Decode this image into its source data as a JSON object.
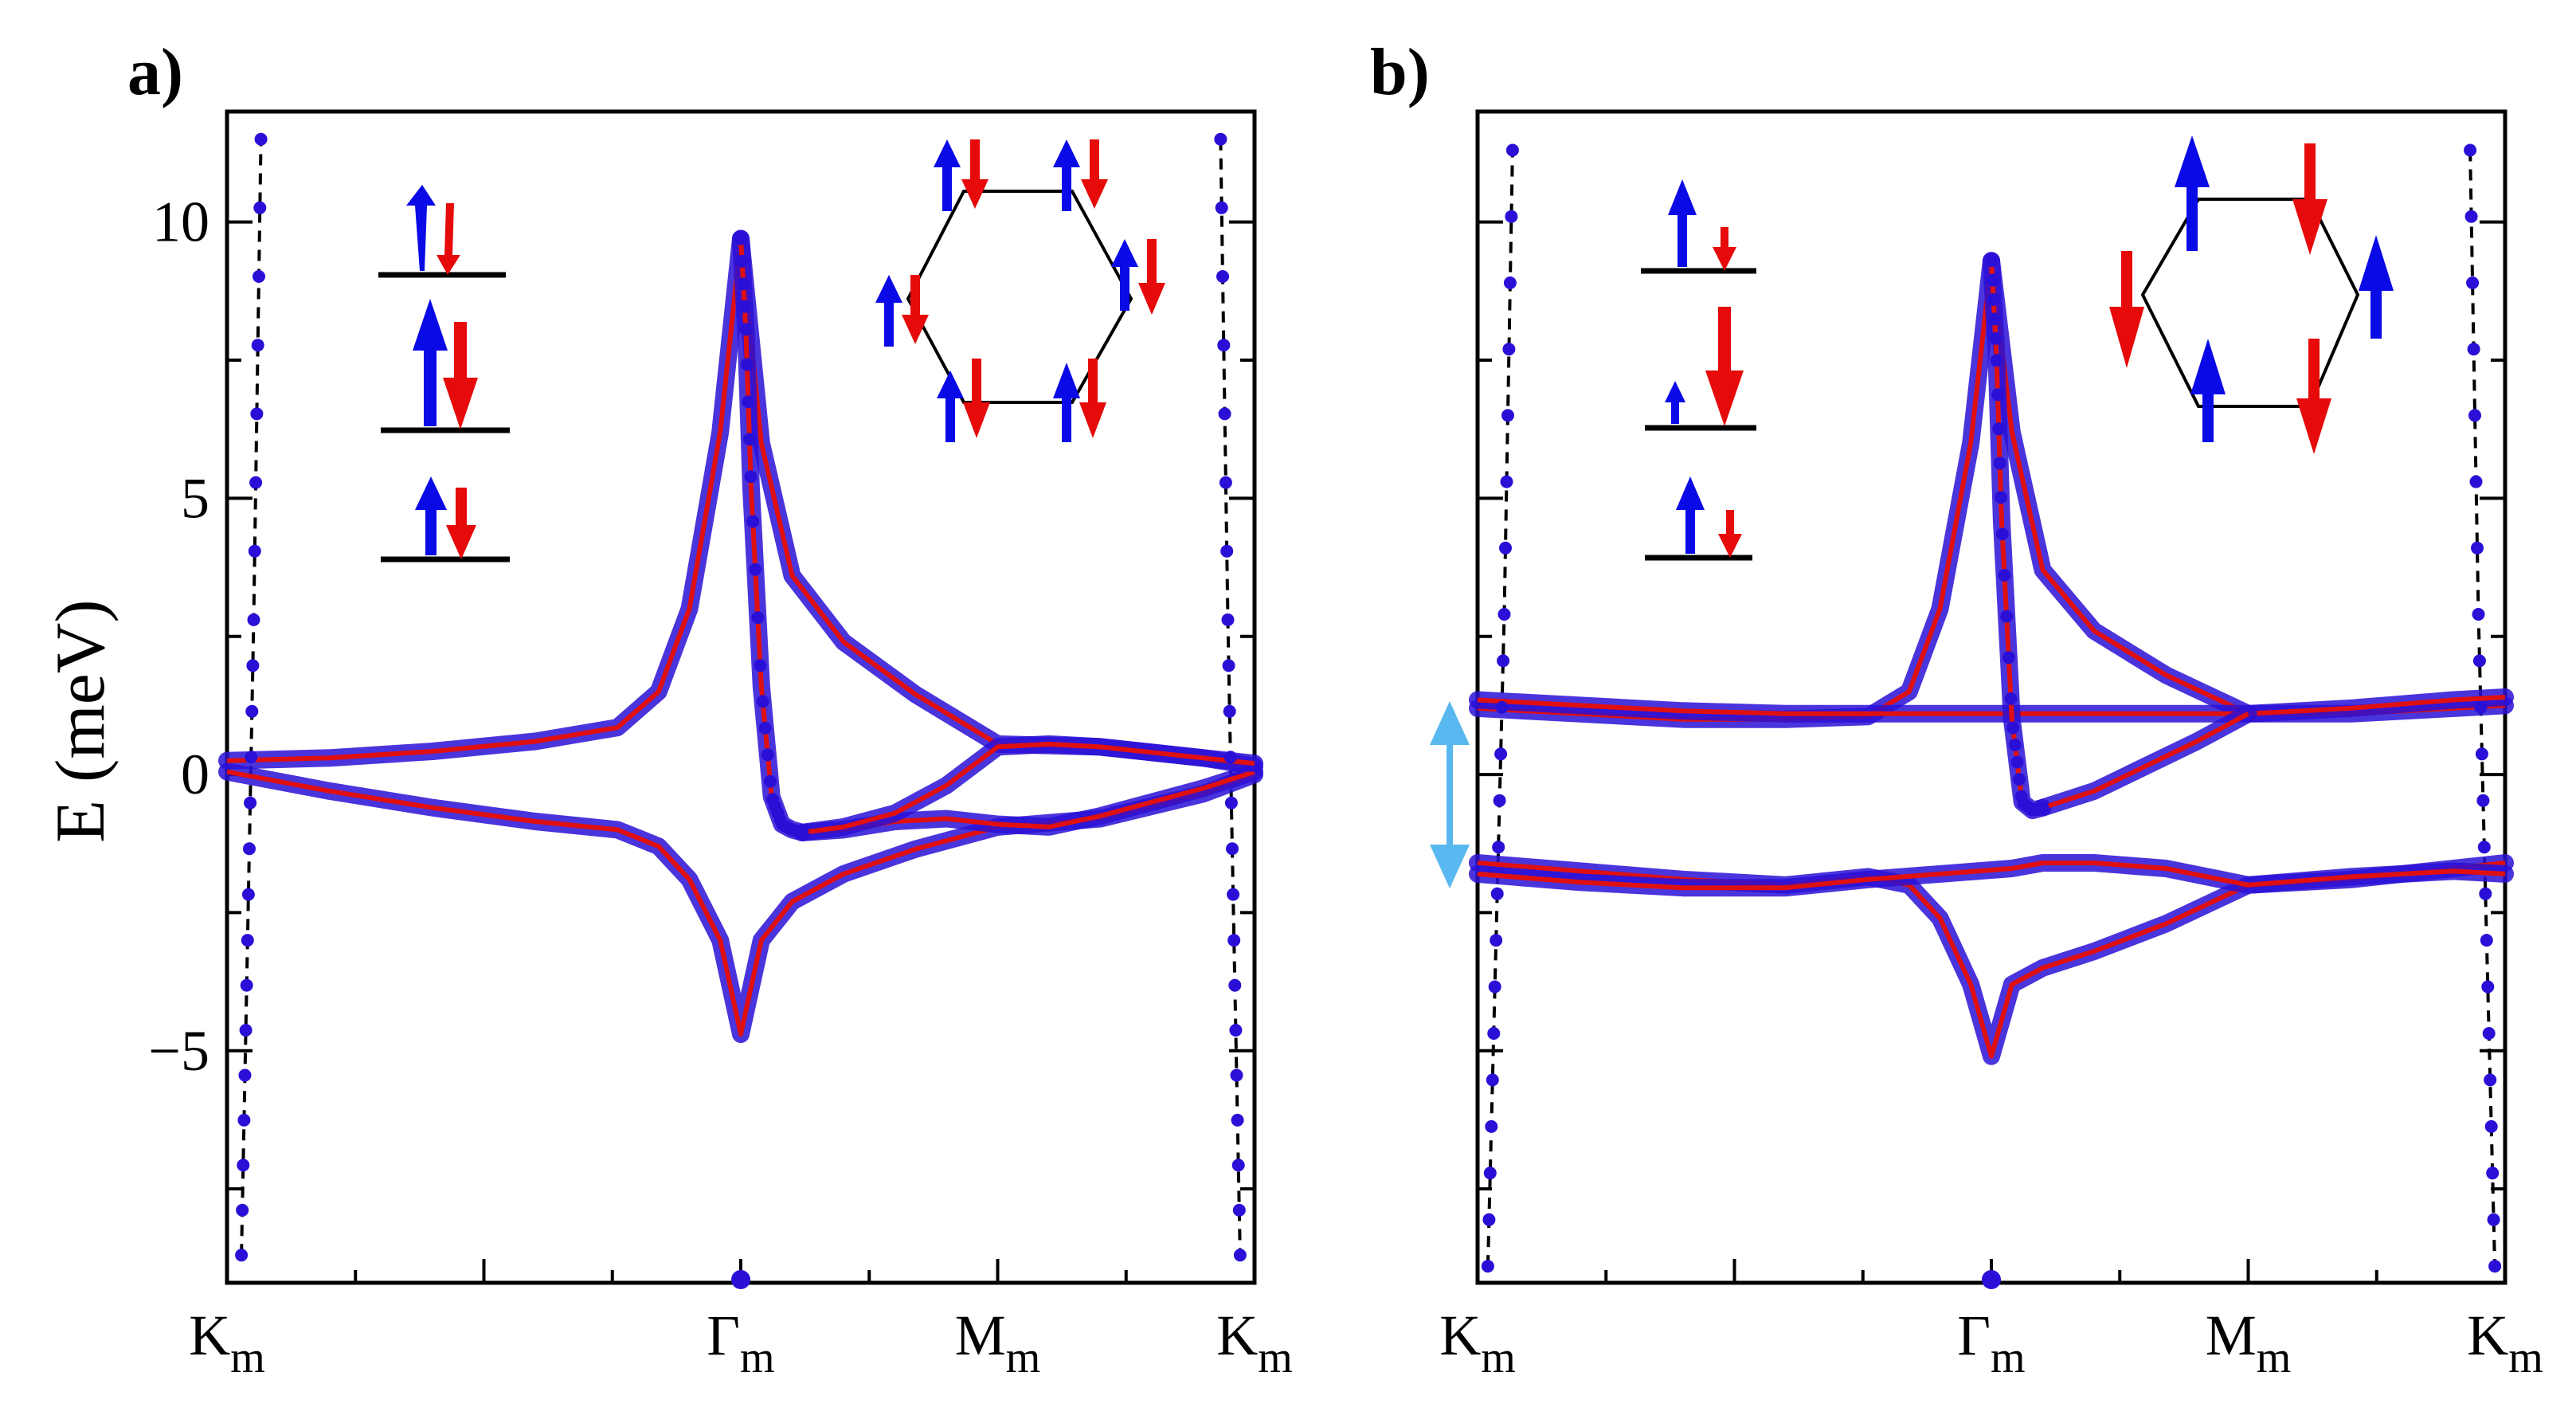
{
  "figure": {
    "panels": [
      "a)",
      "b)"
    ],
    "y_axis_label": "E (meV)"
  },
  "colors": {
    "band_dot": "#2a10d6",
    "band_line": "#e01010",
    "spin_up": "#0a0ae6",
    "spin_down": "#e60a0a",
    "gap_arrow": "#58b8ef",
    "frame": "#000000",
    "dashed": "#000000"
  },
  "chart_data": [
    {
      "type": "line",
      "panel": "a)",
      "title": "",
      "ylabel": "E (meV)",
      "ylim": [
        -9.2,
        12
      ],
      "yticks": [
        -5,
        0,
        5,
        10
      ],
      "ytick_labels": [
        "−5",
        "0",
        "5",
        "10"
      ],
      "x_ticks": [
        {
          "label": "K",
          "sub": "m",
          "pos": 0.0
        },
        {
          "label": "Γ",
          "sub": "m",
          "pos": 0.5
        },
        {
          "label": "M",
          "sub": "m",
          "pos": 0.75
        },
        {
          "label": "K",
          "sub": "m",
          "pos": 1.0
        }
      ],
      "series": [
        {
          "name": "dispersive band (left)",
          "x": [
            0.014,
            0.02,
            0.026,
            0.033
          ],
          "y": [
            -8.7,
            -3.0,
            2.8,
            11.5
          ],
          "style": "dashed-dots"
        },
        {
          "name": "dispersive band (right)",
          "x": [
            0.967,
            0.974,
            0.98,
            0.986
          ],
          "y": [
            11.5,
            2.8,
            -3.0,
            -8.7
          ],
          "style": "dashed-dots"
        },
        {
          "name": "upper flat band",
          "x": [
            0.0,
            0.1,
            0.2,
            0.3,
            0.38,
            0.42,
            0.45,
            0.48,
            0.5,
            0.52,
            0.55,
            0.6,
            0.67,
            0.75,
            0.85,
            0.95,
            1.0
          ],
          "y": [
            0.25,
            0.3,
            0.42,
            0.6,
            0.85,
            1.5,
            3.0,
            6.2,
            9.7,
            6.0,
            3.6,
            2.4,
            1.45,
            0.55,
            0.5,
            0.3,
            0.15
          ]
        },
        {
          "name": "lower flat band",
          "x": [
            0.0,
            0.1,
            0.2,
            0.3,
            0.38,
            0.42,
            0.45,
            0.48,
            0.5,
            0.52,
            0.55,
            0.6,
            0.67,
            0.75,
            0.85,
            0.95,
            1.0
          ],
          "y": [
            0.05,
            -0.3,
            -0.6,
            -0.85,
            -1.0,
            -1.3,
            -1.9,
            -3.0,
            -4.7,
            -3.0,
            -2.3,
            -1.8,
            -1.35,
            -0.95,
            -0.8,
            -0.35,
            0.0
          ]
        },
        {
          "name": "steep branch",
          "x": [
            0.5,
            0.505,
            0.51,
            0.52,
            0.53,
            0.54,
            0.55,
            0.56
          ],
          "y": [
            9.7,
            8.0,
            5.2,
            1.6,
            -0.4,
            -0.9,
            -1.0,
            -1.05
          ]
        },
        {
          "name": "crossing band 1",
          "x": [
            0.56,
            0.6,
            0.65,
            0.7,
            0.75,
            0.8,
            0.85,
            0.9,
            0.95,
            1.0
          ],
          "y": [
            -1.05,
            -1.0,
            -0.85,
            -0.8,
            -0.9,
            -0.95,
            -0.75,
            -0.5,
            -0.25,
            0.05
          ]
        },
        {
          "name": "crossing band 2",
          "x": [
            0.56,
            0.6,
            0.65,
            0.7,
            0.75,
            0.8,
            0.85,
            0.9,
            0.95,
            1.0
          ],
          "y": [
            -1.05,
            -0.95,
            -0.7,
            -0.2,
            0.5,
            0.55,
            0.5,
            0.4,
            0.3,
            0.2
          ]
        }
      ],
      "gap_arrow": false
    },
    {
      "type": "line",
      "panel": "b)",
      "title": "",
      "ylabel": "",
      "ylim": [
        -9.2,
        12
      ],
      "yticks": [
        -5,
        0,
        5,
        10
      ],
      "ytick_labels": [
        "",
        "",
        "",
        ""
      ],
      "x_ticks": [
        {
          "label": "K",
          "sub": "m",
          "pos": 0.0
        },
        {
          "label": "Γ",
          "sub": "m",
          "pos": 0.5
        },
        {
          "label": "M",
          "sub": "m",
          "pos": 0.75
        },
        {
          "label": "K",
          "sub": "m",
          "pos": 1.0
        }
      ],
      "series": [
        {
          "name": "dispersive band (left)",
          "x": [
            0.01,
            0.018,
            0.026,
            0.034
          ],
          "y": [
            -8.9,
            -3.0,
            2.9,
            11.3
          ],
          "style": "dashed-dots"
        },
        {
          "name": "dispersive band (right)",
          "x": [
            0.966,
            0.974,
            0.982,
            0.99
          ],
          "y": [
            11.3,
            2.9,
            -3.0,
            -8.9
          ],
          "style": "dashed-dots"
        },
        {
          "name": "upper flat band",
          "x": [
            0.0,
            0.1,
            0.2,
            0.3,
            0.38,
            0.42,
            0.45,
            0.48,
            0.5,
            0.52,
            0.55,
            0.6,
            0.67,
            0.75,
            0.85,
            0.95,
            1.0
          ],
          "y": [
            1.2,
            1.1,
            1.0,
            1.0,
            1.05,
            1.5,
            3.0,
            6.0,
            9.3,
            6.2,
            3.7,
            2.6,
            1.8,
            1.1,
            1.1,
            1.2,
            1.25
          ]
        },
        {
          "name": "upper flat band 2",
          "x": [
            0.0,
            0.1,
            0.2,
            0.3,
            0.38,
            0.75,
            0.85,
            0.95,
            1.0
          ],
          "y": [
            1.35,
            1.25,
            1.15,
            1.1,
            1.1,
            1.1,
            1.2,
            1.35,
            1.4
          ]
        },
        {
          "name": "lower flat band",
          "x": [
            0.0,
            0.1,
            0.2,
            0.3,
            0.38,
            0.42,
            0.45,
            0.48,
            0.5,
            0.52,
            0.55,
            0.6,
            0.67,
            0.75,
            0.85,
            0.95,
            1.0
          ],
          "y": [
            -1.6,
            -1.75,
            -1.9,
            -2.0,
            -1.85,
            -2.0,
            -2.6,
            -3.8,
            -5.1,
            -3.8,
            -3.5,
            -3.2,
            -2.7,
            -2.0,
            -1.9,
            -1.7,
            -1.6
          ]
        },
        {
          "name": "lower flat band 2",
          "x": [
            0.0,
            0.1,
            0.2,
            0.3,
            0.38,
            0.52,
            0.55,
            0.6,
            0.67,
            0.75,
            0.85,
            0.95,
            1.0
          ],
          "y": [
            -1.8,
            -1.95,
            -2.05,
            -2.05,
            -1.9,
            -1.7,
            -1.6,
            -1.6,
            -1.7,
            -2.0,
            -1.85,
            -1.75,
            -1.8
          ]
        },
        {
          "name": "steep branch",
          "x": [
            0.5,
            0.505,
            0.51,
            0.52,
            0.53,
            0.54,
            0.55
          ],
          "y": [
            9.3,
            7.6,
            4.6,
            1.0,
            -0.5,
            -0.65,
            -0.6
          ]
        },
        {
          "name": "crossing band",
          "x": [
            0.55,
            0.6,
            0.65,
            0.7,
            0.75
          ],
          "y": [
            -0.6,
            -0.3,
            0.15,
            0.6,
            1.1
          ]
        }
      ],
      "gap_arrow": true,
      "gap_arrow_range": [
        -1.9,
        1.3
      ]
    }
  ]
}
